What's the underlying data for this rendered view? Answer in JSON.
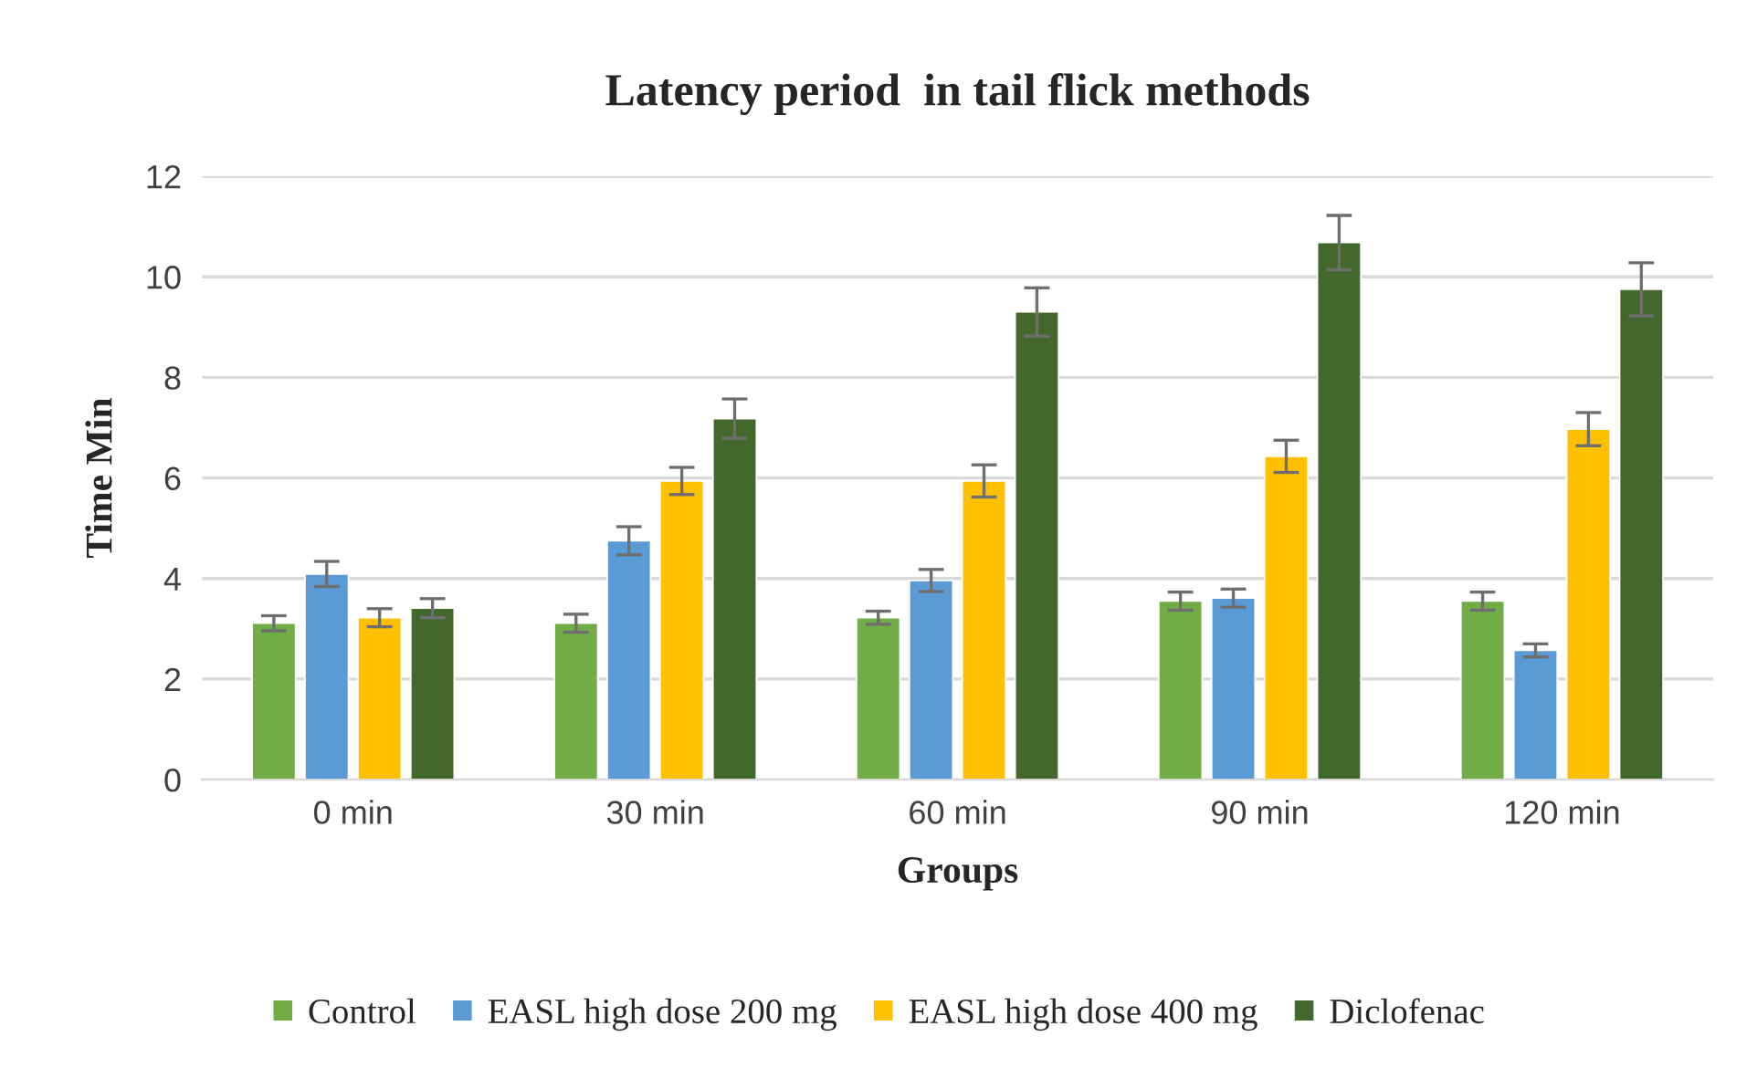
{
  "chart_data": {
    "type": "bar",
    "title": "Latency period  in tail flick methods",
    "xlabel": "Groups",
    "ylabel": "Time Min",
    "categories": [
      "0 min",
      "30 min",
      "60 min",
      "90 min",
      "120 min"
    ],
    "series": [
      {
        "name": "Control",
        "color": "#70ad47",
        "values": [
          3.11,
          3.11,
          3.22,
          3.55,
          3.55
        ],
        "errors": [
          0.15,
          0.18,
          0.13,
          0.18,
          0.18
        ]
      },
      {
        "name": "EASL high dose 200 mg",
        "color": "#5b9bd5",
        "values": [
          4.09,
          4.75,
          3.96,
          3.61,
          2.57
        ],
        "errors": [
          0.25,
          0.28,
          0.22,
          0.18,
          0.13
        ]
      },
      {
        "name": "EASL high dose 400 mg",
        "color": "#ffc000",
        "values": [
          3.22,
          5.94,
          5.94,
          6.43,
          6.97
        ],
        "errors": [
          0.18,
          0.27,
          0.32,
          0.32,
          0.33
        ]
      },
      {
        "name": "Diclofenac",
        "color": "#43682b",
        "values": [
          3.41,
          7.18,
          9.3,
          10.68,
          9.75
        ],
        "errors": [
          0.19,
          0.39,
          0.48,
          0.54,
          0.53
        ]
      }
    ],
    "ylim": [
      0,
      12
    ],
    "yticks": [
      0,
      2,
      4,
      6,
      8,
      10,
      12
    ],
    "grid": "y",
    "legend": "bottom"
  }
}
